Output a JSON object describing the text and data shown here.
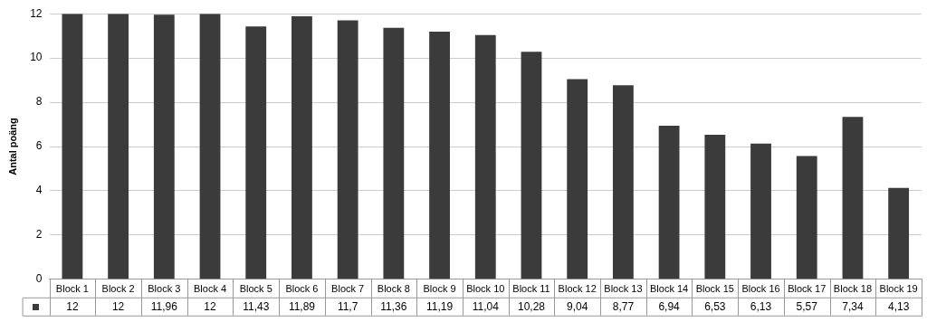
{
  "chart_data": {
    "type": "bar",
    "ylabel": "Antal poäng",
    "categories": [
      "Block 1",
      "Block 2",
      "Block 3",
      "Block 4",
      "Block 5",
      "Block 6",
      "Block 7",
      "Block 8",
      "Block 9",
      "Block 10",
      "Block 11",
      "Block 12",
      "Block 13",
      "Block 14",
      "Block 15",
      "Block 16",
      "Block 17",
      "Block 18",
      "Block 19"
    ],
    "values": [
      12,
      12,
      11.96,
      12,
      11.43,
      11.89,
      11.7,
      11.36,
      11.19,
      11.04,
      10.28,
      9.04,
      8.77,
      6.94,
      6.53,
      6.13,
      5.57,
      7.34,
      4.13
    ],
    "value_labels": [
      "12",
      "12",
      "11,96",
      "12",
      "11,43",
      "11,89",
      "11,7",
      "11,36",
      "11,19",
      "11,04",
      "10,28",
      "9,04",
      "8,77",
      "6,94",
      "6,53",
      "6,13",
      "5,57",
      "7,34",
      "4,13"
    ],
    "color": "#3b3b3b",
    "ylim": [
      0,
      12
    ],
    "yticks": [
      0,
      2,
      4,
      6,
      8,
      10,
      12
    ],
    "grid": "y",
    "legend": false
  }
}
